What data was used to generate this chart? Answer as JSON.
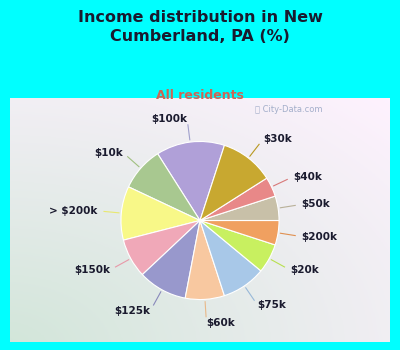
{
  "title": "Income distribution in New\nCumberland, PA (%)",
  "subtitle": "All residents",
  "title_color": "#1a1a2e",
  "subtitle_color": "#cc6655",
  "top_bg": "#00ffff",
  "chart_bg": "#d8ede0",
  "labels": [
    "$100k",
    "$10k",
    "> $200k",
    "$150k",
    "$125k",
    "$60k",
    "$75k",
    "$20k",
    "$200k",
    "$50k",
    "$40k",
    "$30k"
  ],
  "values": [
    14,
    9,
    11,
    8,
    10,
    8,
    9,
    6,
    5,
    5,
    4,
    11
  ],
  "colors": [
    "#b0a0d8",
    "#a8c890",
    "#f8f888",
    "#f0a8b8",
    "#9898cc",
    "#f8c8a0",
    "#a8c8e8",
    "#c8f060",
    "#f0a060",
    "#c8c0a8",
    "#e88888",
    "#c8a830"
  ],
  "startangle": 72,
  "label_fontsize": 7.5,
  "label_color": "#1a1a2e",
  "watermark": "City-Data.com",
  "line_color_map": {
    "$100k": "#a0a0cc",
    "$10k": "#a0c080",
    "> $200k": "#e8e870",
    "$150k": "#e898a8",
    "$125k": "#8888bb",
    "$60k": "#e8b888",
    "$75k": "#98b8d8",
    "$20k": "#b8e050",
    "$200k": "#e09050",
    "$50k": "#b8b098",
    "$40k": "#d87878",
    "$30k": "#b89820"
  }
}
